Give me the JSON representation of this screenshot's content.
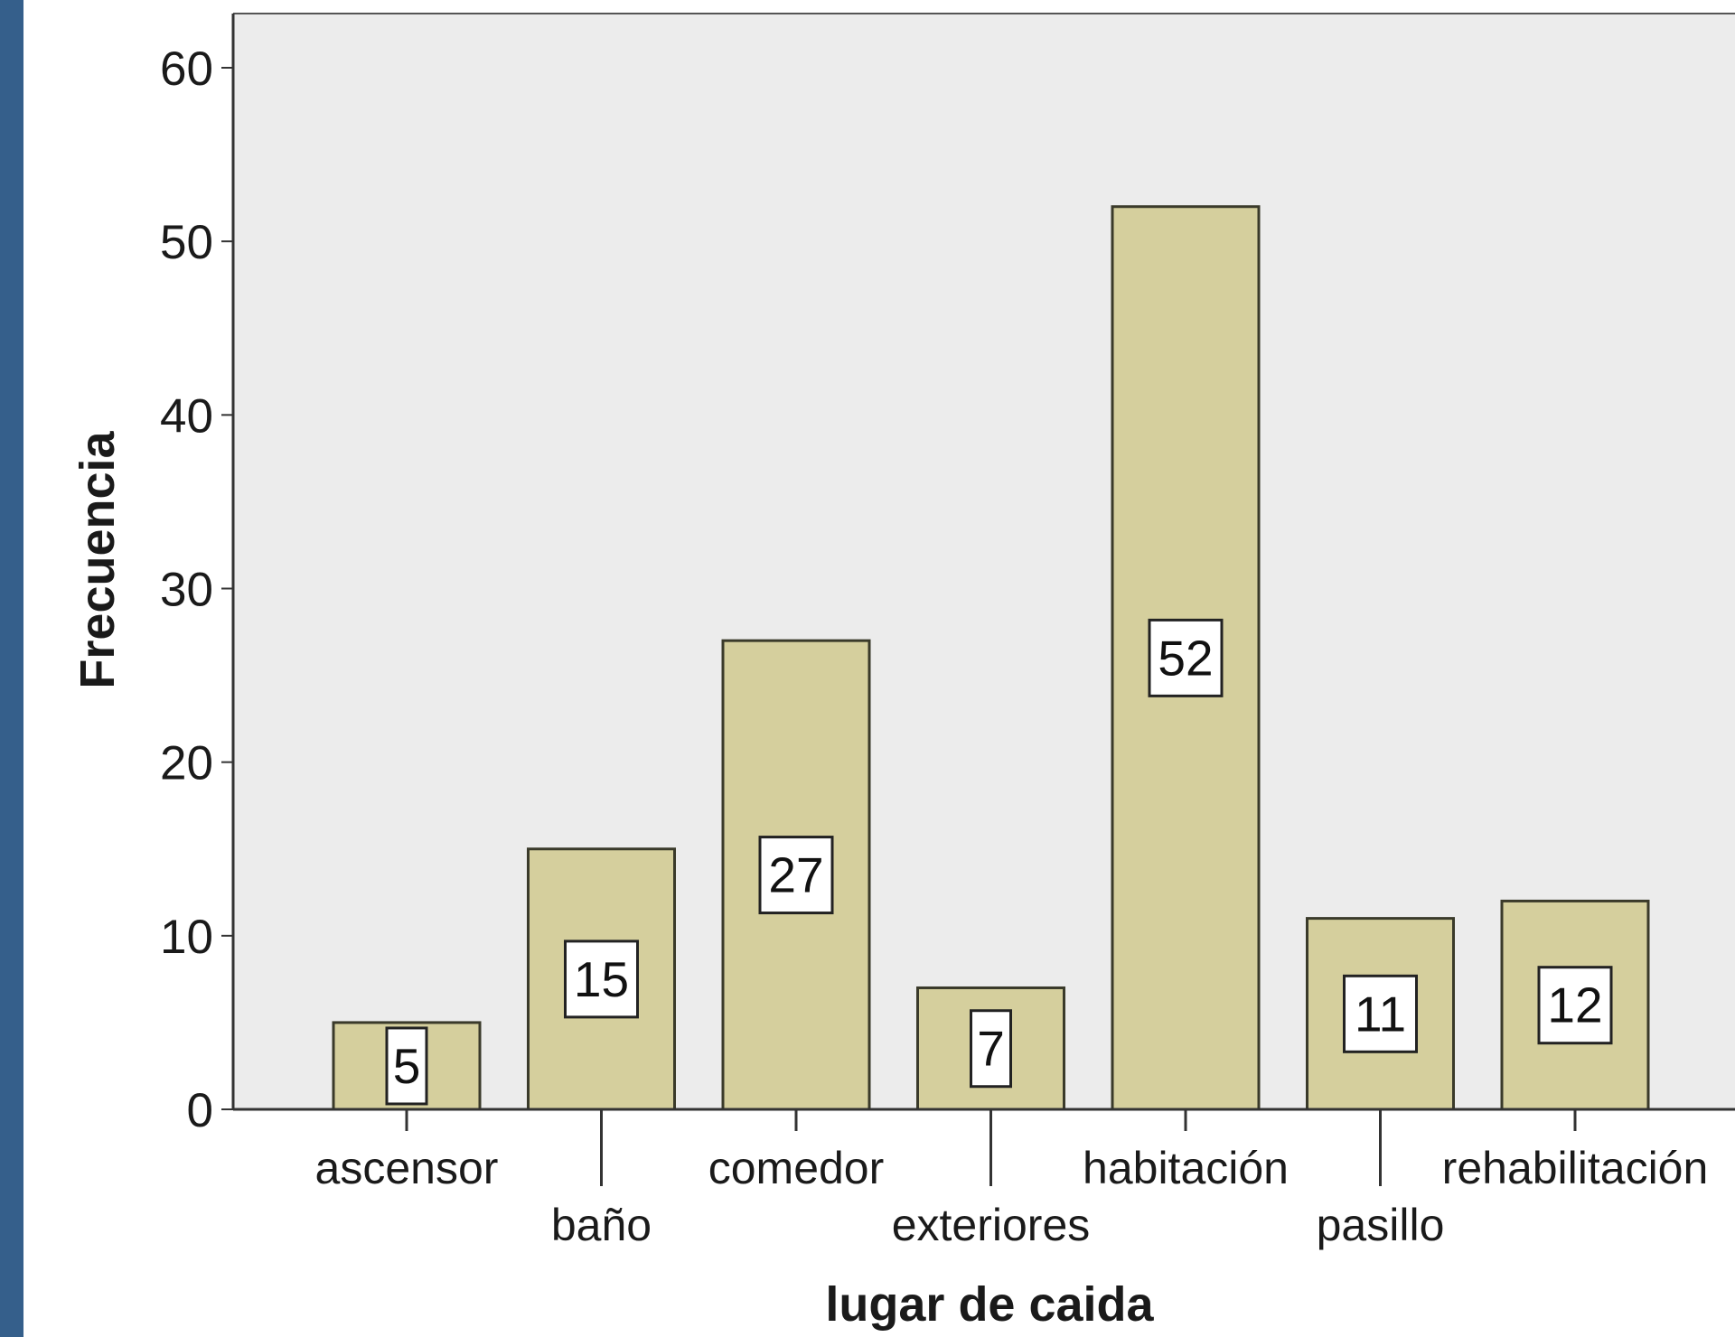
{
  "chart_data": {
    "type": "bar",
    "xlabel": "lugar de caida",
    "ylabel": "Frecuencia",
    "categories": [
      "ascensor",
      "baño",
      "comedor",
      "exteriores",
      "habitación",
      "pasillo",
      "rehabilitación"
    ],
    "values": [
      5,
      15,
      27,
      7,
      52,
      11,
      12
    ],
    "data_labels": [
      "5",
      "15",
      "27",
      "7",
      "52",
      "11",
      "12"
    ],
    "yticks": [
      0,
      10,
      20,
      30,
      40,
      50,
      60
    ],
    "ylim": [
      0,
      60
    ],
    "grid": false,
    "colors": {
      "bar_fill": "#d5cf9d",
      "bar_stroke": "#3a3a2a",
      "plot_background": "#ececec",
      "side_band": "#355f8b"
    }
  }
}
